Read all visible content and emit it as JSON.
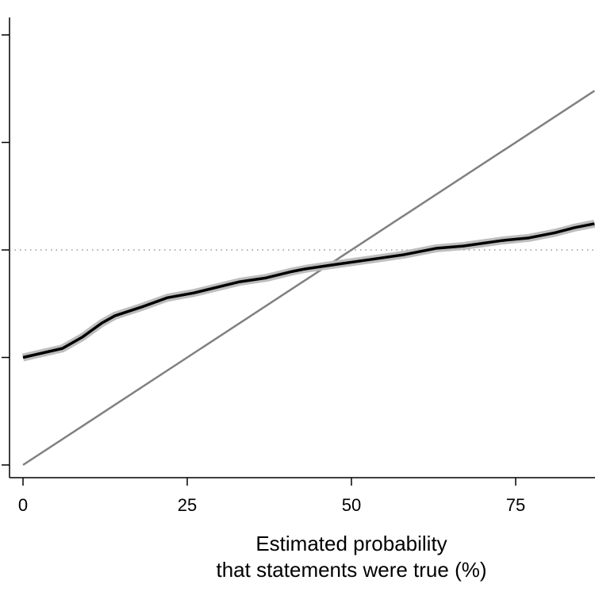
{
  "chart_data": {
    "type": "line",
    "title": "",
    "xlabel_lines": [
      "Estimated probability",
      "that statements were true (%)"
    ],
    "ylabel": "",
    "xlim": [
      -4,
      87
    ],
    "ylim": [
      -3,
      104
    ],
    "xticks": [
      0,
      25,
      50,
      75
    ],
    "xtick_labels": [
      "0",
      "25",
      "50",
      "75"
    ],
    "yticks": [
      0,
      25,
      50,
      75,
      100
    ],
    "grid": false,
    "reference_hline": {
      "y": 50,
      "style": "dotted",
      "color": "#808080"
    },
    "reference_diagonal": {
      "x": [
        0,
        87
      ],
      "y": [
        0,
        87
      ],
      "color": "#808080"
    },
    "series": [
      {
        "color": "#000000",
        "ci_color": "#bdbdbd",
        "x": [
          0,
          6,
          9,
          12,
          14,
          18,
          22,
          26,
          33,
          37,
          41,
          43,
          47,
          53,
          58,
          63,
          67,
          73,
          77,
          81,
          84,
          87
        ],
        "y": [
          25,
          27.1,
          29.7,
          33,
          34.7,
          36.7,
          38.9,
          40,
          42.6,
          43.5,
          45,
          45.6,
          46.5,
          47.8,
          48.9,
          50.4,
          50.9,
          52.2,
          52.8,
          54,
          55.2,
          56.1
        ]
      }
    ]
  }
}
